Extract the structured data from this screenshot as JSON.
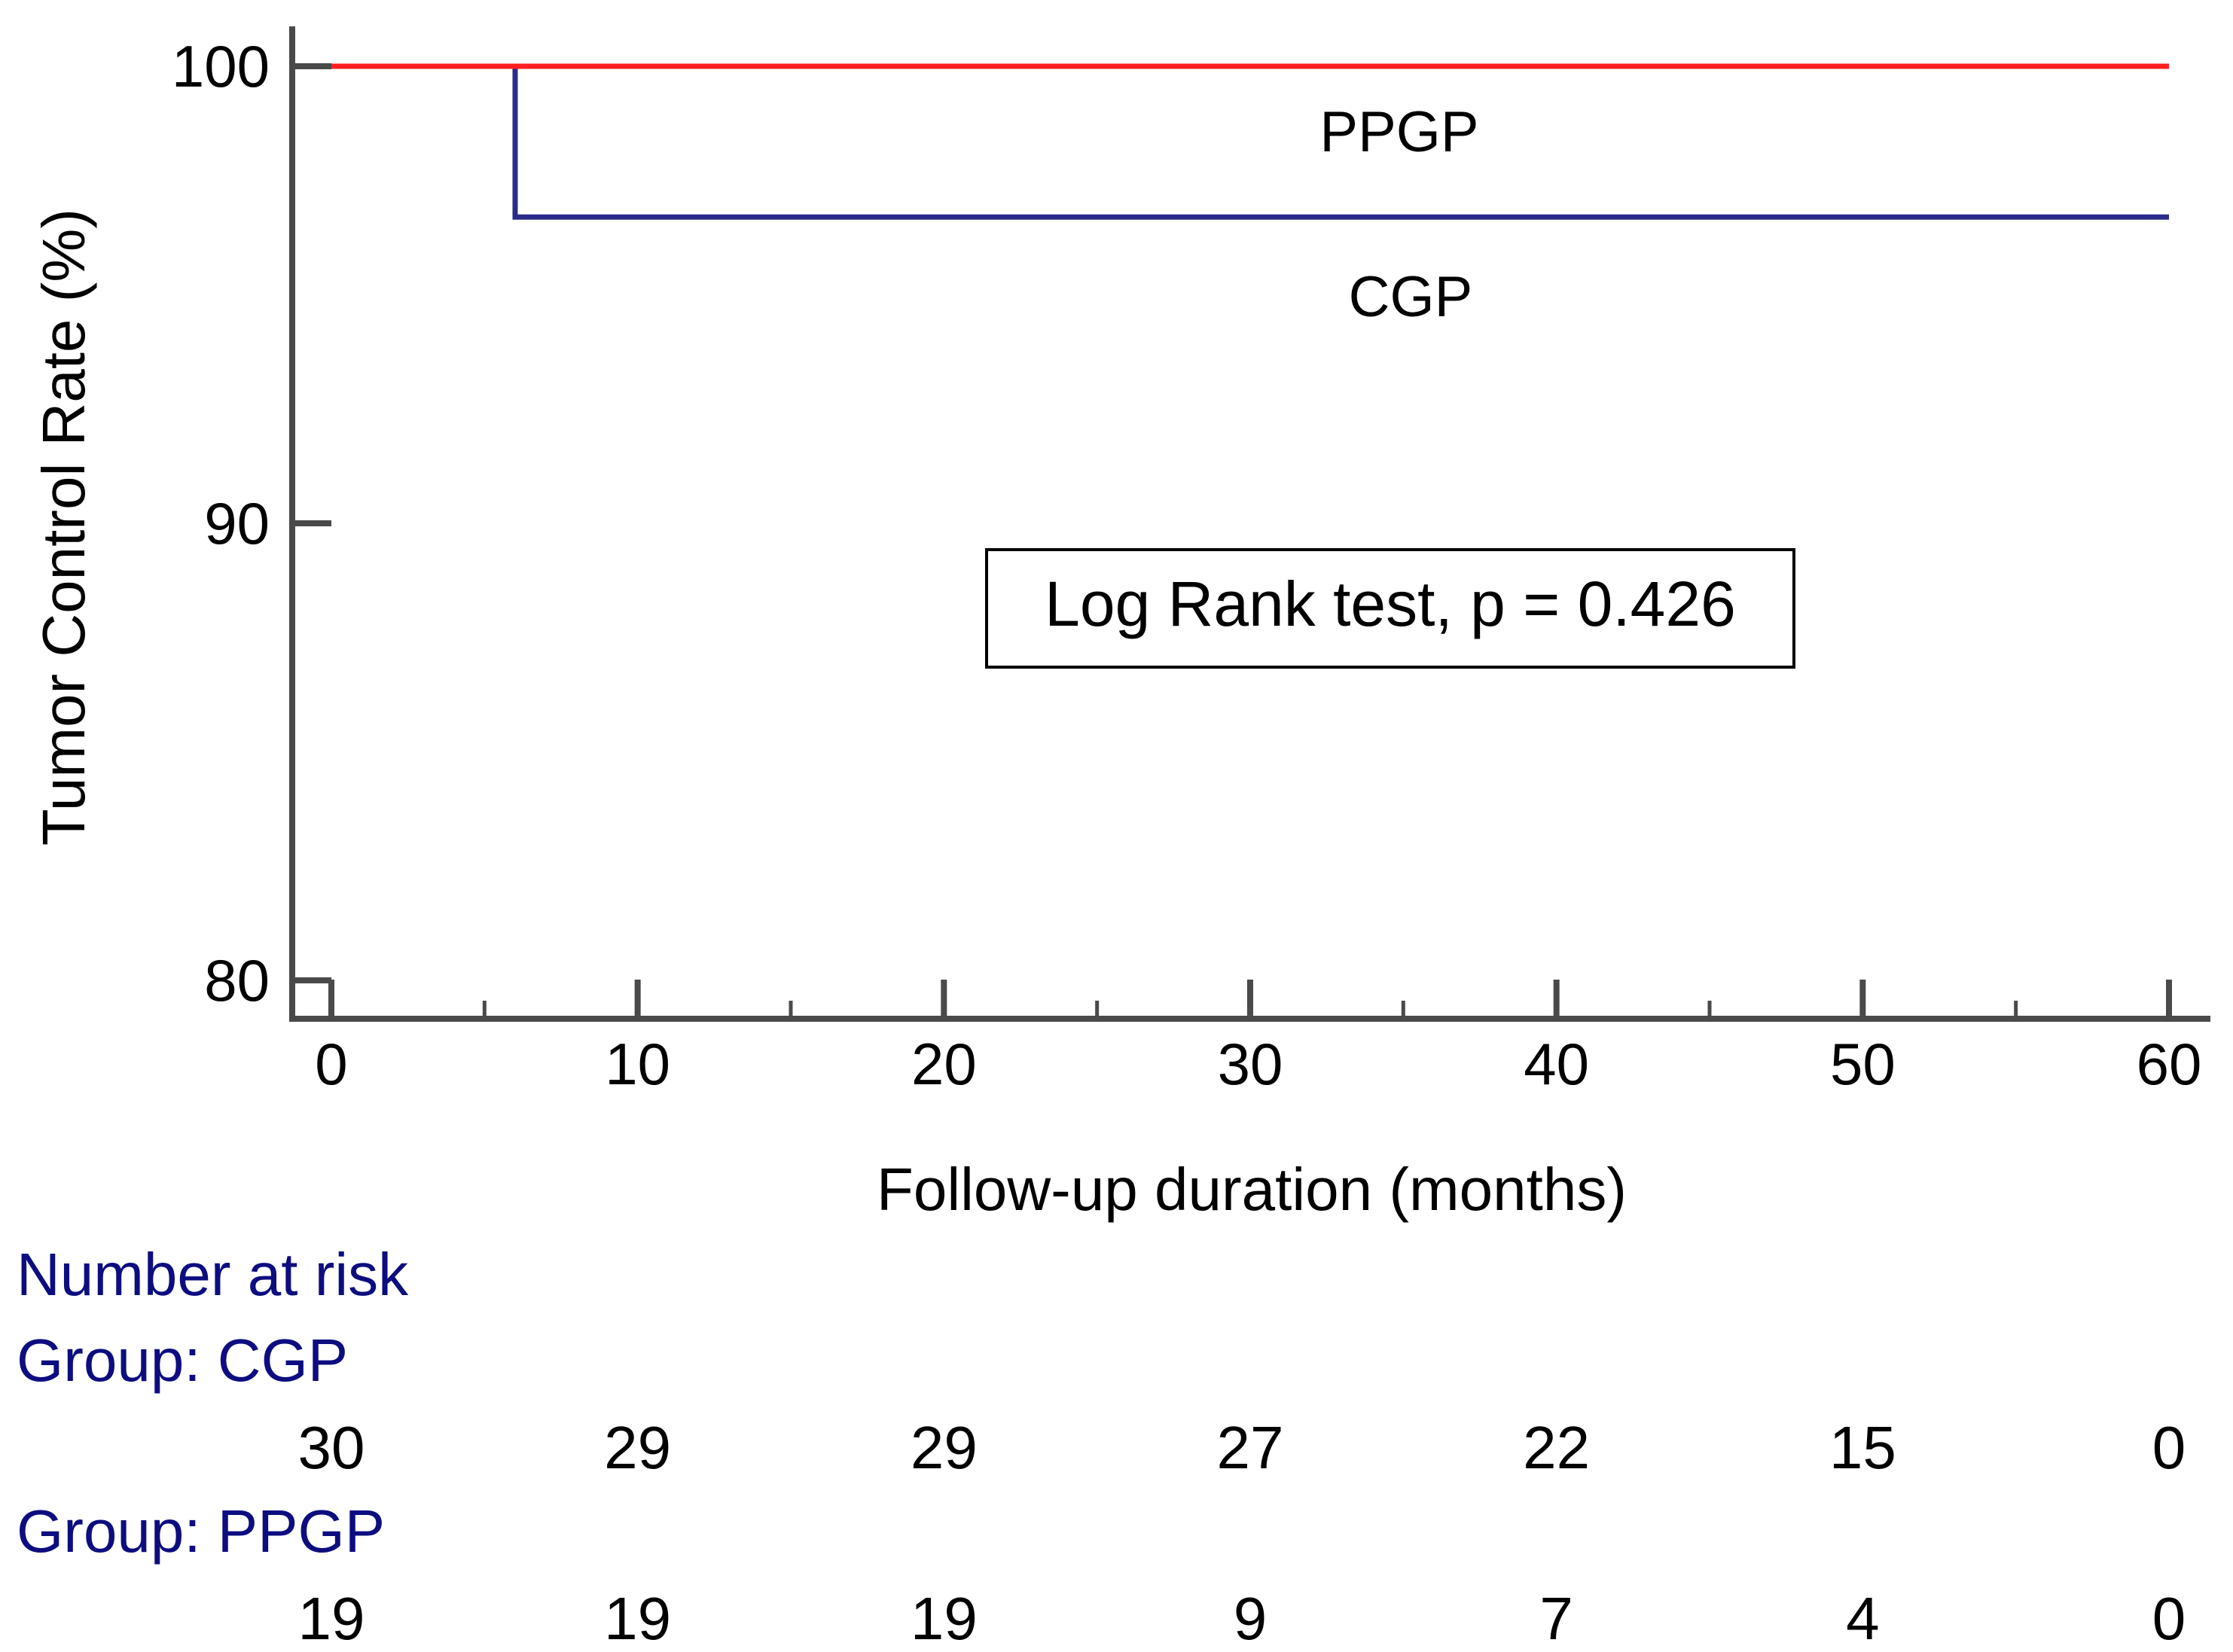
{
  "chart_data": {
    "type": "line",
    "subtype": "kaplan-meier",
    "title": "",
    "xlabel": "Follow-up duration (months)",
    "ylabel": "Tumor Control Rate (%)",
    "xlim": [
      0,
      60
    ],
    "ylim": [
      80,
      100
    ],
    "xticks": [
      0,
      10,
      20,
      30,
      40,
      50,
      60
    ],
    "yticks": [
      80,
      90,
      100
    ],
    "grid": false,
    "series": [
      {
        "name": "PPGP",
        "color": "#ff1f1f",
        "steps": [
          [
            0,
            100
          ],
          [
            60,
            100
          ]
        ]
      },
      {
        "name": "CGP",
        "color": "#2b2b8c",
        "steps": [
          [
            0,
            100
          ],
          [
            6,
            100
          ],
          [
            6,
            96.7
          ],
          [
            60,
            96.7
          ]
        ]
      }
    ],
    "annotation": "Log Rank test, p = 0.426",
    "risk_table": {
      "title": "Number at risk",
      "groups": [
        {
          "label": "Group: CGP",
          "values": [
            30,
            29,
            29,
            27,
            22,
            15,
            0
          ]
        },
        {
          "label": "Group: PPGP",
          "values": [
            19,
            19,
            19,
            9,
            7,
            4,
            0
          ]
        }
      ]
    }
  },
  "colors": {
    "axis": "#4a4a4a",
    "risk_text": "#0d0d80"
  }
}
